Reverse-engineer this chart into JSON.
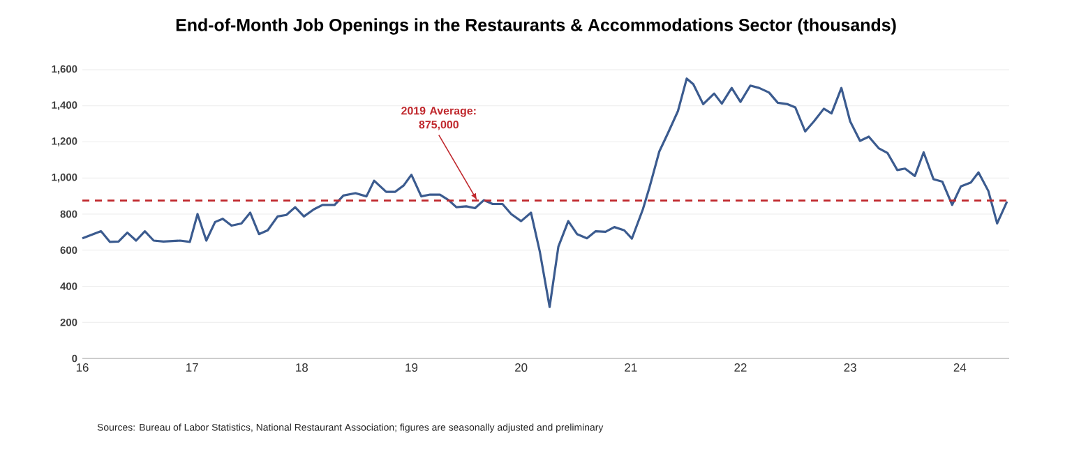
{
  "chart_data": {
    "type": "line",
    "title": "End-of-Month Job Openings in the Restaurants & Accommodations Sector (thousands)",
    "x": [
      16.0,
      16.17,
      16.25,
      16.33,
      16.41,
      16.49,
      16.57,
      16.65,
      16.74,
      16.89,
      16.98,
      17.05,
      17.13,
      17.21,
      17.28,
      17.36,
      17.45,
      17.53,
      17.61,
      17.69,
      17.78,
      17.86,
      17.94,
      18.02,
      18.11,
      18.19,
      18.3,
      18.38,
      18.49,
      18.59,
      18.66,
      18.77,
      18.85,
      18.93,
      19.0,
      19.09,
      19.17,
      19.26,
      19.34,
      19.41,
      19.5,
      19.58,
      19.66,
      19.74,
      19.83,
      19.91,
      20.0,
      20.09,
      20.17,
      20.26,
      20.34,
      20.43,
      20.51,
      20.6,
      20.68,
      20.77,
      20.85,
      20.94,
      21.01,
      21.11,
      21.17,
      21.26,
      21.34,
      21.43,
      21.51,
      21.57,
      21.66,
      21.76,
      21.83,
      21.92,
      22.0,
      22.09,
      22.17,
      22.26,
      22.34,
      22.43,
      22.5,
      22.59,
      22.67,
      22.76,
      22.83,
      22.92,
      23.0,
      23.09,
      23.17,
      23.26,
      23.34,
      23.43,
      23.5,
      23.59,
      23.67,
      23.76,
      23.84,
      23.93,
      24.01,
      24.1,
      24.17,
      24.26,
      24.34,
      24.43
    ],
    "series": [
      {
        "color": "#3b5b8f",
        "values": [
          666,
          705,
          646,
          648,
          697,
          653,
          705,
          653,
          648,
          653,
          646,
          800,
          653,
          756,
          774,
          736,
          748,
          808,
          689,
          710,
          787,
          795,
          838,
          787,
          826,
          851,
          851,
          903,
          916,
          898,
          985,
          923,
          923,
          959,
          1018,
          898,
          908,
          908,
          877,
          838,
          843,
          833,
          877,
          856,
          856,
          800,
          761,
          808,
          594,
          285,
          620,
          761,
          689,
          666,
          705,
          702,
          728,
          710,
          664,
          826,
          947,
          1147,
          1250,
          1371,
          1551,
          1520,
          1409,
          1468,
          1412,
          1499,
          1422,
          1512,
          1499,
          1474,
          1417,
          1409,
          1391,
          1258,
          1314,
          1384,
          1358,
          1499,
          1314,
          1206,
          1229,
          1165,
          1139,
          1044,
          1052,
          1011,
          1142,
          993,
          980,
          851,
          954,
          975,
          1031,
          928,
          748,
          869
        ]
      }
    ],
    "xlim": [
      16,
      24.45
    ],
    "xticks": [
      16,
      17,
      18,
      19,
      20,
      21,
      22,
      23,
      24
    ],
    "ylim": [
      0,
      1600
    ],
    "yticks": [
      0,
      200,
      400,
      600,
      800,
      {
        "value": 1000,
        "label": "1,000"
      },
      {
        "value": 1200,
        "label": "1,200"
      },
      {
        "value": 1400,
        "label": "1,400"
      },
      {
        "value": 1600,
        "label": "1,600"
      }
    ],
    "ref_lines": [
      {
        "axis": "y",
        "value": 875,
        "label": "2019 Average: 875,000",
        "color": "#c0282d",
        "line_style": "dashed"
      }
    ],
    "grid": "y",
    "annotations": [
      "Sources: Bureau of Labor Statistics, National Restaurant Association; figures are seasonally adjusted and preliminary"
    ]
  }
}
